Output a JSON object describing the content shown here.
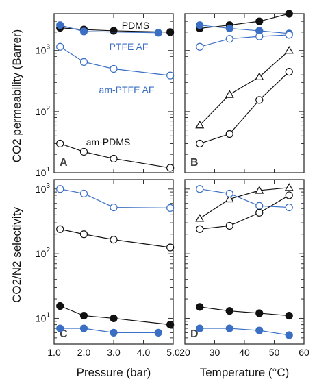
{
  "colors": {
    "black": "#111111",
    "blue": "#3a6fc4",
    "axis": "#333333"
  },
  "y_axis_labels": {
    "top": "CO2 permeability (Barrer)",
    "bottom": "CO2/N2 selectivity"
  },
  "x_axis_labels": {
    "left": "Pressure (bar)",
    "right": "Temperature (°C)"
  },
  "chart_data": [
    {
      "panel": "A",
      "type": "scatter",
      "xlim": [
        1.0,
        5.0
      ],
      "ylim": [
        10,
        4000
      ],
      "yscale": "log",
      "xticks": [
        "1.0",
        "2.0",
        "3.0",
        "4.0",
        "5.0"
      ],
      "annotations": [
        {
          "text": "PDMS",
          "color": "black"
        },
        {
          "text": "PTFE AF",
          "color": "blue"
        },
        {
          "text": "am-PTFE AF",
          "color": "blue"
        },
        {
          "text": "am-PDMS",
          "color": "black"
        }
      ],
      "series": [
        {
          "name": "PDMS",
          "marker": "filled-circle",
          "color": "black",
          "x": [
            1.2,
            2.0,
            3.0,
            4.9
          ],
          "y": [
            2350,
            2200,
            2100,
            2000
          ]
        },
        {
          "name": "PTFE AF",
          "marker": "filled-circle",
          "color": "blue",
          "x": [
            1.2,
            2.0,
            4.5
          ],
          "y": [
            2600,
            2050,
            1950
          ]
        },
        {
          "name": "am-PTFE AF",
          "marker": "open-circle",
          "color": "blue",
          "x": [
            1.2,
            2.0,
            3.0,
            4.9
          ],
          "y": [
            1150,
            650,
            500,
            390
          ]
        },
        {
          "name": "am-PDMS",
          "marker": "open-circle",
          "color": "black",
          "x": [
            1.2,
            2.0,
            3.0,
            4.9
          ],
          "y": [
            30,
            22,
            17,
            12
          ]
        }
      ]
    },
    {
      "panel": "B",
      "type": "scatter",
      "xlim": [
        20,
        60
      ],
      "ylim": [
        10,
        4000
      ],
      "yscale": "log",
      "xticks": [
        "20",
        "30",
        "40",
        "50",
        "60"
      ],
      "series": [
        {
          "marker": "filled-circle",
          "color": "black",
          "x": [
            25,
            35,
            45,
            55
          ],
          "y": [
            2300,
            2600,
            3000,
            4000
          ]
        },
        {
          "marker": "filled-circle",
          "color": "blue",
          "x": [
            25,
            35,
            45,
            55
          ],
          "y": [
            2600,
            2300,
            2100,
            1900
          ]
        },
        {
          "marker": "open-circle",
          "color": "blue",
          "x": [
            25,
            35,
            45,
            55
          ],
          "y": [
            1150,
            1550,
            1700,
            1800
          ]
        },
        {
          "marker": "open-triangle",
          "color": "black",
          "x": [
            25,
            35,
            45,
            55
          ],
          "y": [
            60,
            190,
            370,
            1000
          ]
        },
        {
          "marker": "open-circle",
          "color": "black",
          "x": [
            25,
            35,
            45,
            55
          ],
          "y": [
            30,
            43,
            155,
            450
          ]
        }
      ]
    },
    {
      "panel": "C",
      "type": "scatter",
      "xlim": [
        1.0,
        5.0
      ],
      "ylim": [
        4,
        1400
      ],
      "yscale": "log",
      "xticks": [
        "1.0",
        "2.0",
        "3.0",
        "4.0",
        "5.0"
      ],
      "series": [
        {
          "marker": "open-circle",
          "color": "blue",
          "x": [
            1.2,
            2.0,
            3.0,
            4.9
          ],
          "y": [
            1000,
            850,
            520,
            510
          ]
        },
        {
          "marker": "open-circle",
          "color": "black",
          "x": [
            1.2,
            2.0,
            3.0,
            4.9
          ],
          "y": [
            240,
            200,
            165,
            125
          ]
        },
        {
          "marker": "filled-circle",
          "color": "black",
          "x": [
            1.2,
            2.0,
            3.0,
            4.9
          ],
          "y": [
            15.5,
            11,
            10,
            8
          ]
        },
        {
          "marker": "filled-circle",
          "color": "blue",
          "x": [
            1.2,
            2.0,
            3.0,
            4.5
          ],
          "y": [
            7,
            7,
            6,
            6
          ]
        }
      ]
    },
    {
      "panel": "D",
      "type": "scatter",
      "xlim": [
        20,
        60
      ],
      "ylim": [
        4,
        1400
      ],
      "yscale": "log",
      "xticks": [
        "20",
        "30",
        "40",
        "50",
        "60"
      ],
      "series": [
        {
          "marker": "open-triangle",
          "color": "black",
          "x": [
            25,
            35,
            45,
            55
          ],
          "y": [
            350,
            700,
            950,
            1050
          ]
        },
        {
          "marker": "open-circle",
          "color": "blue",
          "x": [
            25,
            35,
            45,
            55
          ],
          "y": [
            1000,
            850,
            550,
            520
          ]
        },
        {
          "marker": "open-circle",
          "color": "black",
          "x": [
            25,
            35,
            45,
            55
          ],
          "y": [
            240,
            270,
            430,
            800
          ]
        },
        {
          "marker": "filled-circle",
          "color": "black",
          "x": [
            25,
            35,
            45,
            55
          ],
          "y": [
            15,
            13,
            12,
            11
          ]
        },
        {
          "marker": "filled-circle",
          "color": "blue",
          "x": [
            25,
            35,
            45,
            55
          ],
          "y": [
            7,
            7,
            6.5,
            5.5
          ]
        }
      ]
    }
  ]
}
